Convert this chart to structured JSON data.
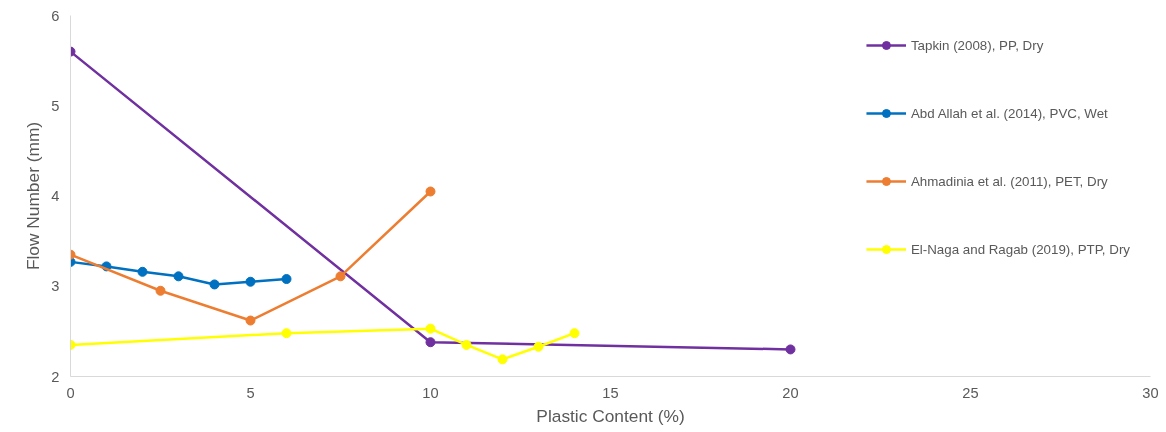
{
  "chart_data": {
    "type": "line",
    "xlabel": "Plastic Content (%)",
    "ylabel": "Flow Number (mm)",
    "xlim": [
      0,
      30
    ],
    "xticks": [
      0,
      5,
      10,
      15,
      20,
      25,
      30
    ],
    "ylim": [
      2,
      6
    ],
    "yticks": [
      2,
      3,
      4,
      5,
      6
    ],
    "grid": false,
    "legend": "right",
    "marker": "circle",
    "line_style": "solid",
    "series": [
      {
        "name": "Tapkin (2008), PP, Dry",
        "color": "#7030a0",
        "x": [
          0,
          10,
          20
        ],
        "values": [
          5.6,
          2.38,
          2.3
        ]
      },
      {
        "name": "Abd Allah et al. (2014), PVC, Wet",
        "color": "#0070c0",
        "x": [
          0,
          1,
          2,
          3,
          4,
          5,
          6
        ],
        "values": [
          3.27,
          3.22,
          3.16,
          3.11,
          3.02,
          3.05,
          3.08
        ]
      },
      {
        "name": "Ahmadinia et al. (2011), PET, Dry",
        "color": "#ed7d31",
        "x": [
          0,
          2.5,
          5,
          7.5,
          10
        ],
        "values": [
          3.35,
          2.95,
          2.62,
          3.11,
          4.05
        ]
      },
      {
        "name": "El-Naga and Ragab (2019), PTP, Dry",
        "color": "#ffff00",
        "x": [
          0,
          6,
          10,
          11,
          12,
          13,
          14
        ],
        "values": [
          2.35,
          2.48,
          2.53,
          2.35,
          2.19,
          2.33,
          2.48
        ]
      }
    ]
  }
}
